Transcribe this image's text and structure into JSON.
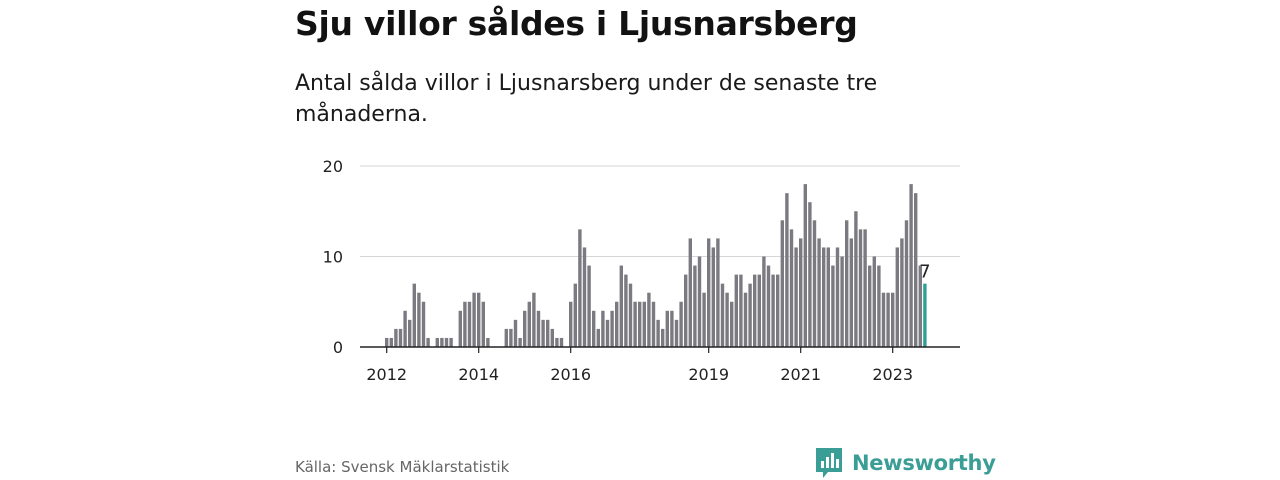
{
  "title": "Sju villor såldes i Ljusnarsberg",
  "subtitle": "Antal sålda villor i Ljusnarsberg under de senaste tre månaderna.",
  "source": "Källa: Svensk Mäklarstatistik",
  "brand": "Newsworthy",
  "colors": {
    "bar": "#7b7a80",
    "highlight": "#2e9e96",
    "grid": "#d6d6d6",
    "axis": "#222222",
    "brand": "#3a9d96"
  },
  "chart_data": {
    "type": "bar",
    "title": "Sju villor såldes i Ljusnarsberg",
    "subtitle": "Antal sålda villor i Ljusnarsberg under de senaste tre månaderna.",
    "xlabel": "",
    "ylabel": "",
    "ylim": [
      0,
      20
    ],
    "yticks": [
      0,
      10,
      20
    ],
    "xticks": [
      {
        "label": "2012",
        "index": 0
      },
      {
        "label": "2014",
        "index": 20
      },
      {
        "label": "2016",
        "index": 40
      },
      {
        "label": "2019",
        "index": 70
      },
      {
        "label": "2021",
        "index": 90
      },
      {
        "label": "2023",
        "index": 110
      }
    ],
    "grid": true,
    "highlight_index": 117,
    "highlight_label": "7",
    "values": [
      1,
      1,
      2,
      2,
      4,
      3,
      7,
      6,
      5,
      1,
      0,
      1,
      1,
      1,
      1,
      0,
      4,
      5,
      5,
      6,
      6,
      5,
      1,
      0,
      0,
      0,
      2,
      2,
      3,
      1,
      4,
      5,
      6,
      4,
      3,
      3,
      2,
      1,
      1,
      0,
      5,
      7,
      13,
      11,
      9,
      4,
      2,
      4,
      3,
      4,
      5,
      9,
      8,
      7,
      5,
      5,
      5,
      6,
      5,
      3,
      2,
      4,
      4,
      3,
      5,
      8,
      12,
      9,
      10,
      6,
      12,
      11,
      12,
      7,
      6,
      5,
      8,
      8,
      6,
      7,
      8,
      8,
      10,
      9,
      8,
      8,
      14,
      17,
      13,
      11,
      12,
      18,
      16,
      14,
      12,
      11,
      11,
      9,
      11,
      10,
      14,
      12,
      15,
      13,
      13,
      9,
      10,
      9,
      6,
      6,
      6,
      11,
      12,
      14,
      18,
      17,
      9,
      7
    ]
  }
}
